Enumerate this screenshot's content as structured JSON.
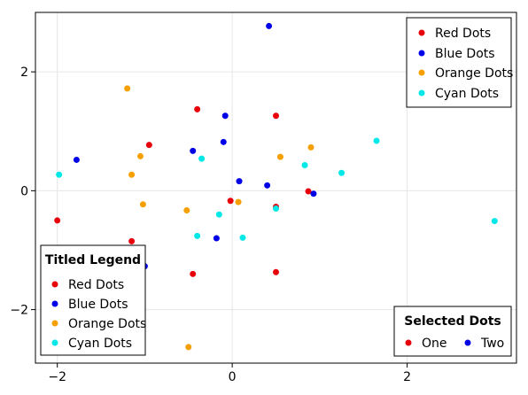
{
  "chart_data": {
    "type": "scatter",
    "xlim": [
      -2.25,
      3.25
    ],
    "ylim": [
      -2.9,
      3.0
    ],
    "xticks": [
      -2,
      0,
      2
    ],
    "yticks": [
      -2,
      0,
      2
    ],
    "tick_labels_x": [
      "−2",
      "0",
      "2"
    ],
    "tick_labels_y": [
      "−2",
      "0",
      "2"
    ],
    "grid": true,
    "series": [
      {
        "name": "Red Dots",
        "color": "#e8000b",
        "points": [
          [
            -2.0,
            -0.5
          ],
          [
            -1.15,
            -0.85
          ],
          [
            -0.95,
            0.77
          ],
          [
            -0.45,
            -1.4
          ],
          [
            -0.4,
            1.37
          ],
          [
            -0.02,
            -0.17
          ],
          [
            0.5,
            1.26
          ],
          [
            0.5,
            -0.27
          ],
          [
            0.5,
            -1.37
          ],
          [
            0.87,
            -0.01
          ]
        ]
      },
      {
        "name": "Blue Dots",
        "color": "#0000e8",
        "points": [
          [
            -1.78,
            0.52
          ],
          [
            -1.0,
            -1.27
          ],
          [
            -0.45,
            0.67
          ],
          [
            -0.18,
            -0.8
          ],
          [
            -0.1,
            0.82
          ],
          [
            -0.08,
            1.26
          ],
          [
            0.08,
            0.16
          ],
          [
            0.4,
            0.09
          ],
          [
            0.42,
            2.77
          ],
          [
            0.93,
            -0.05
          ]
        ]
      },
      {
        "name": "Orange Dots",
        "color": "#f5a000",
        "points": [
          [
            -1.2,
            1.72
          ],
          [
            -1.15,
            0.27
          ],
          [
            -1.05,
            0.58
          ],
          [
            -1.02,
            -0.23
          ],
          [
            -0.52,
            -0.33
          ],
          [
            -0.5,
            -2.63
          ],
          [
            0.07,
            -0.19
          ],
          [
            0.55,
            0.57
          ],
          [
            0.9,
            0.73
          ]
        ]
      },
      {
        "name": "Cyan Dots",
        "color": "#00e8e8",
        "points": [
          [
            -1.98,
            0.27
          ],
          [
            -0.4,
            -0.76
          ],
          [
            -0.35,
            0.54
          ],
          [
            -0.15,
            -0.4
          ],
          [
            0.12,
            -0.79
          ],
          [
            0.5,
            -0.3
          ],
          [
            0.83,
            0.43
          ],
          [
            1.25,
            0.3
          ],
          [
            1.65,
            0.84
          ],
          [
            3.0,
            -0.51
          ]
        ]
      }
    ],
    "legends": [
      {
        "placement": "top-right",
        "title": "",
        "entries": [
          "Red Dots",
          "Blue Dots",
          "Orange Dots",
          "Cyan Dots"
        ],
        "colors": [
          "#e8000b",
          "#0000e8",
          "#f5a000",
          "#00e8e8"
        ]
      },
      {
        "placement": "bottom-left",
        "title": "Titled Legend",
        "entries": [
          "Red Dots",
          "Blue Dots",
          "Orange Dots",
          "Cyan Dots"
        ],
        "colors": [
          "#e8000b",
          "#0000e8",
          "#f5a000",
          "#00e8e8"
        ]
      },
      {
        "placement": "bottom-right",
        "title": "Selected Dots",
        "entries": [
          "One",
          "Two"
        ],
        "colors": [
          "#e8000b",
          "#0000e8"
        ]
      }
    ]
  }
}
